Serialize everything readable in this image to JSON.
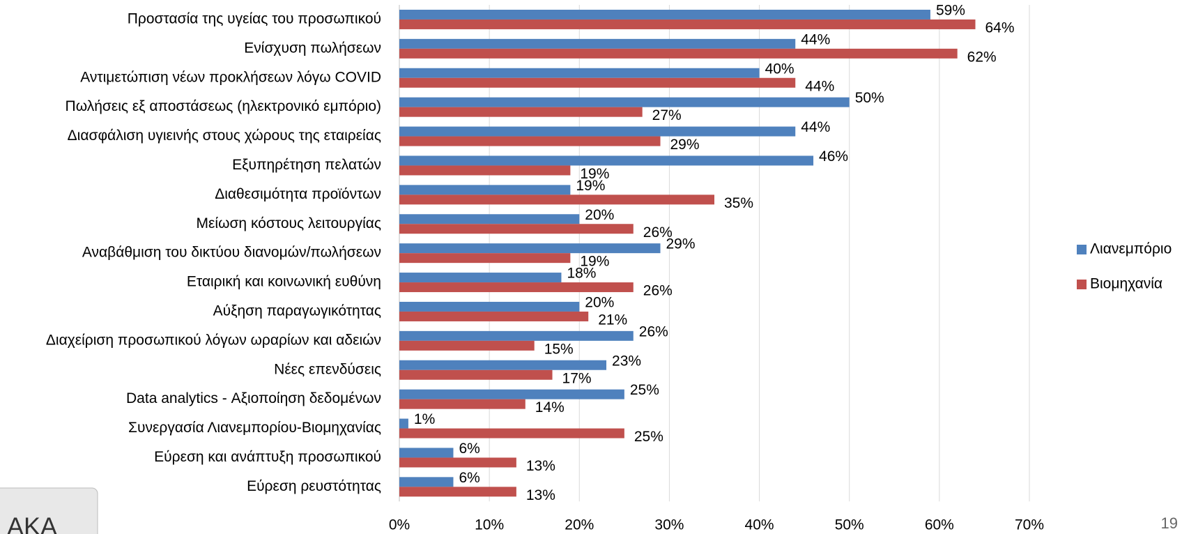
{
  "chart_data": {
    "type": "barh",
    "categories": [
      "Προστασία της υγείας του προσωπικού",
      "Ενίσχυση πωλήσεων",
      "Αντιμετώπιση νέων προκλήσεων λόγω COVID",
      "Πωλήσεις εξ αποστάσεως (ηλεκτρονικό εμπόριο)",
      "Διασφάλιση υγιεινής στους χώρους της εταιρείας",
      "Εξυπηρέτηση πελατών",
      "Διαθεσιμότητα προϊόντων",
      "Μείωση κόστους λειτουργίας",
      "Αναβάθμιση του δικτύου διανομών/πωλήσεων",
      "Εταιρική και κοινωνική ευθύνη",
      "Αύξηση παραγωγικότητας",
      "Διαχείριση προσωπικού λόγων ωραρίων και αδειών",
      "Νέες επενδύσεις",
      "Data analytics - Αξιοποίηση δεδομένων",
      "Συνεργασία Λιανεμπορίου-Βιομηχανίας",
      "Εύρεση και ανάπτυξη προσωπικού",
      "Εύρεση ρευστότητας"
    ],
    "series": [
      {
        "name": "Λιανεμπόριο",
        "color": "#4f81bd",
        "values": [
          59,
          44,
          40,
          50,
          44,
          46,
          19,
          20,
          29,
          18,
          20,
          26,
          23,
          25,
          1,
          6,
          6
        ],
        "value_labels": [
          "59%",
          "44%",
          "40%",
          "50%",
          "44%",
          "46%",
          "19%",
          "20%",
          "29%",
          "18%",
          "20%",
          "26%",
          "23%",
          "25%",
          "1%",
          "6%",
          "6%"
        ]
      },
      {
        "name": "Βιομηχανία",
        "color": "#c0504d",
        "values": [
          64,
          62,
          44,
          27,
          29,
          19,
          35,
          26,
          19,
          26,
          21,
          15,
          17,
          14,
          25,
          13,
          13
        ],
        "value_labels": [
          "64%",
          "62%",
          "44%",
          "27%",
          "29%",
          "19%",
          "35%",
          "26%",
          "19%",
          "26%",
          "21%",
          "15%",
          "17%",
          "14%",
          "25%",
          "13%",
          "13%"
        ]
      }
    ],
    "xlim": [
      0,
      70
    ],
    "xticks": [
      {
        "value": 0,
        "label": "0%"
      },
      {
        "value": 10,
        "label": "10%"
      },
      {
        "value": 20,
        "label": "20%"
      },
      {
        "value": 30,
        "label": "30%"
      },
      {
        "value": 40,
        "label": "40%"
      },
      {
        "value": 50,
        "label": "50%"
      },
      {
        "value": 60,
        "label": "60%"
      },
      {
        "value": 70,
        "label": "70%"
      }
    ],
    "grid": true,
    "legend": "right"
  },
  "logo_text": "ΑΚΑ",
  "page_number": "19"
}
